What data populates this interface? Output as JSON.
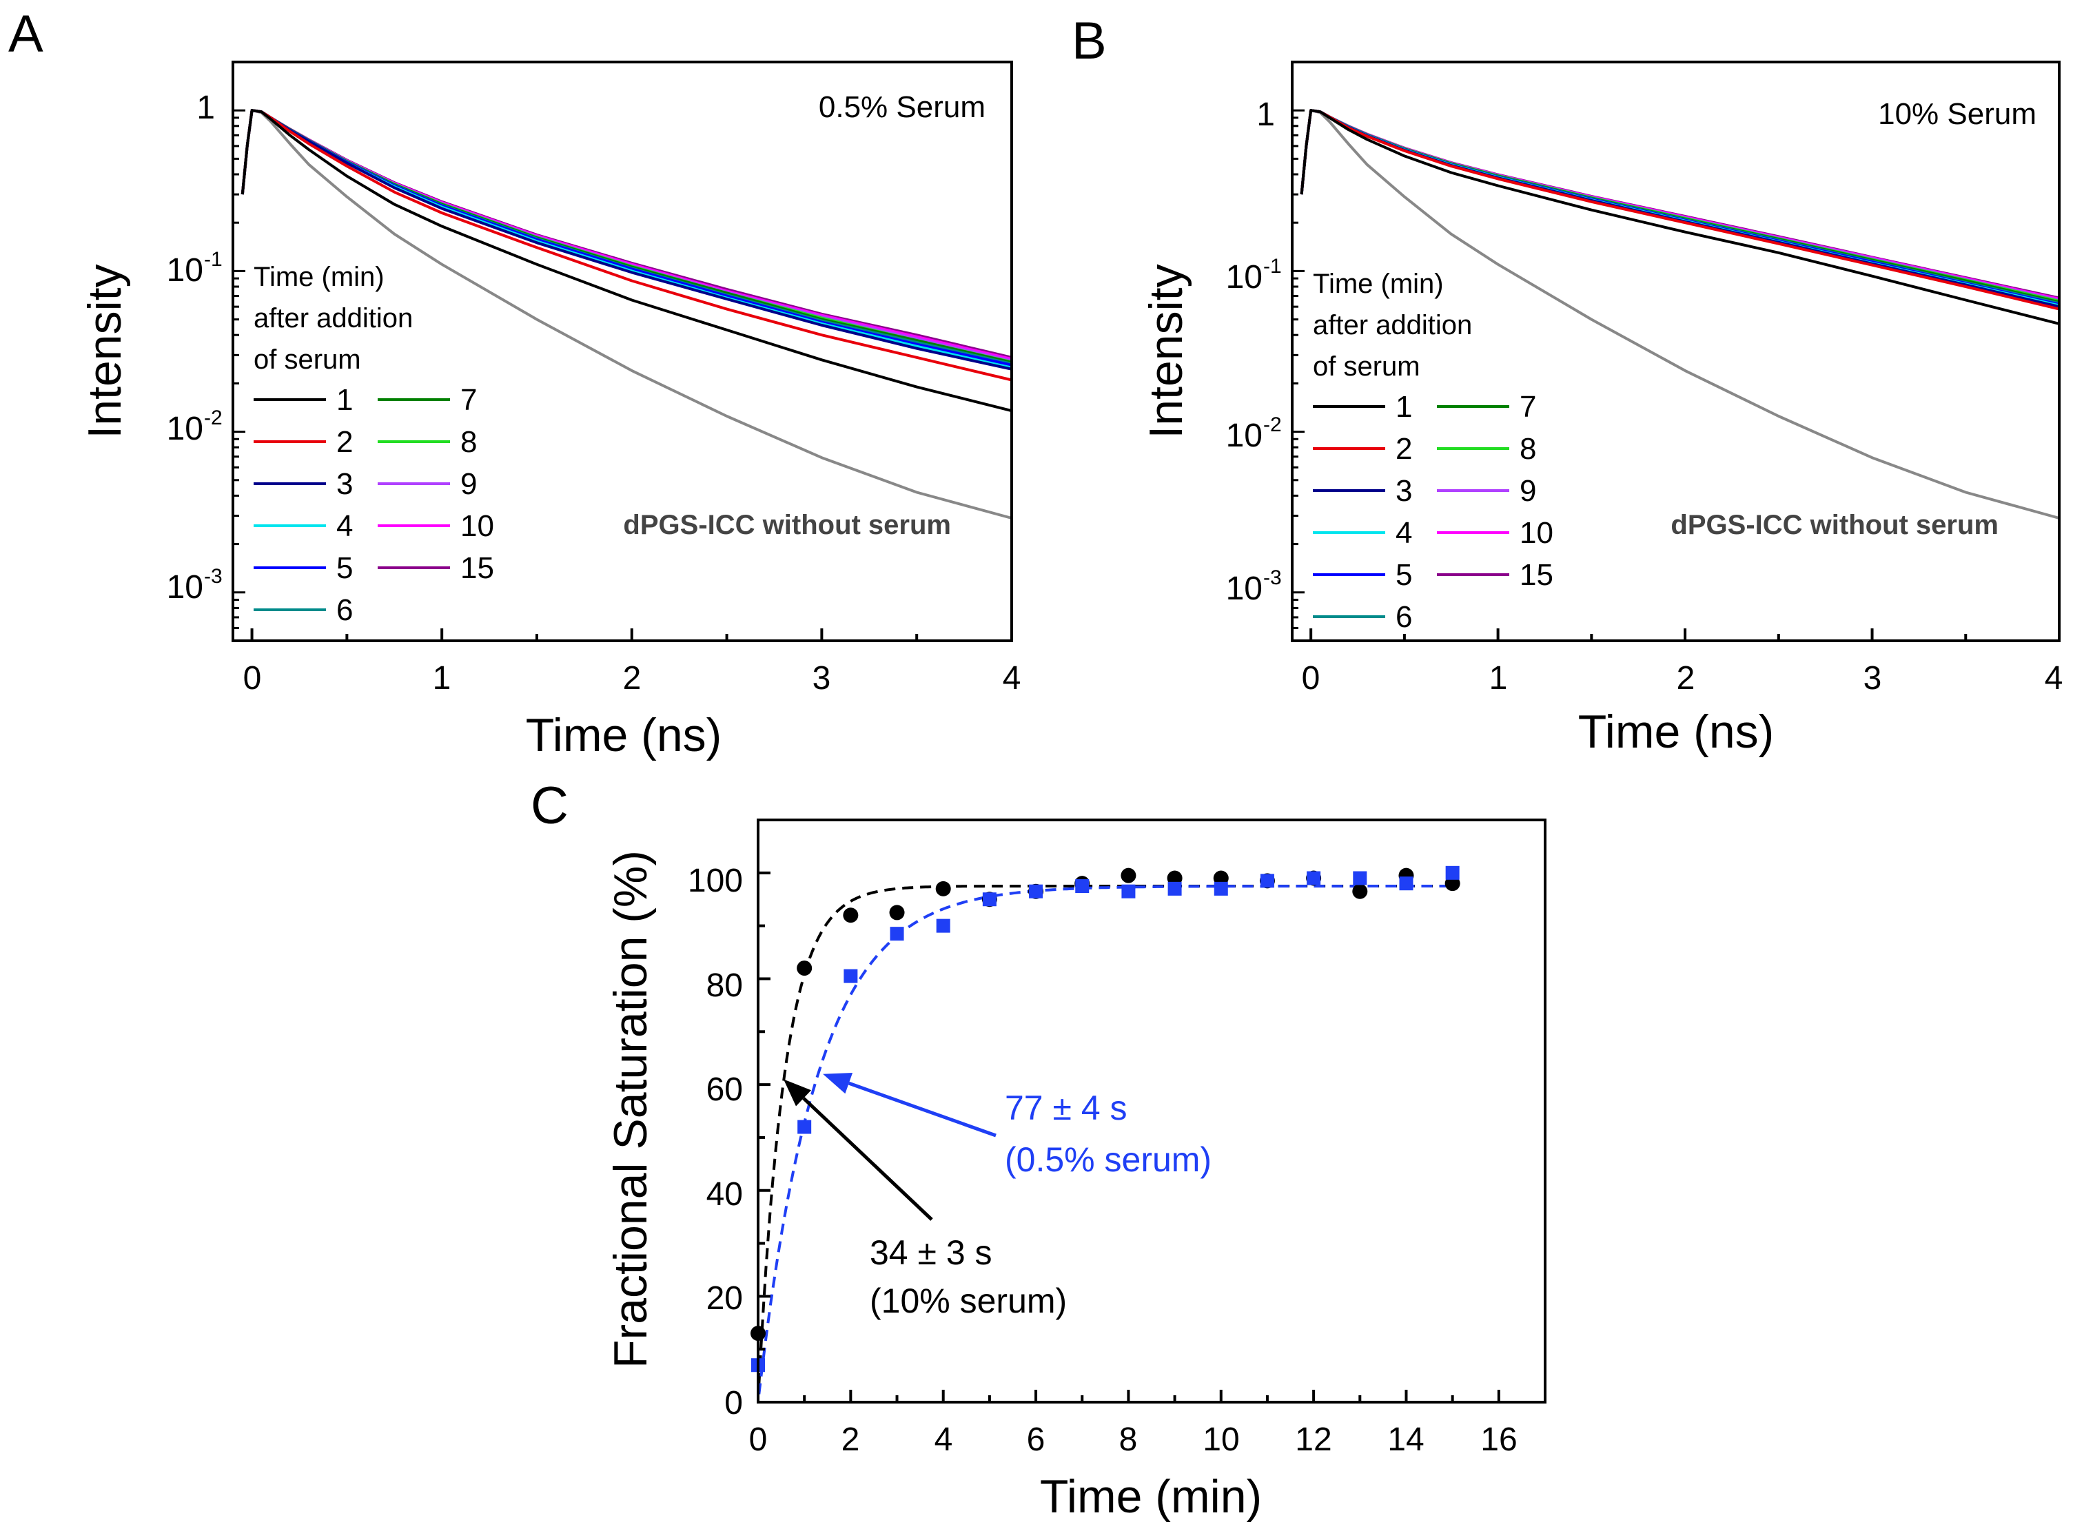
{
  "chart_data": [
    {
      "panel": "A",
      "type": "line",
      "title": "0.5% Serum",
      "xlabel": "Time (ns)",
      "ylabel": "Intensity",
      "yscale": "log",
      "xlim": [
        -0.1,
        4
      ],
      "ylim": [
        0.0005,
        2
      ],
      "xticks": [
        "0",
        "1",
        "2",
        "3",
        "4"
      ],
      "yticks": [
        {
          "base": "1",
          "exp": ""
        },
        {
          "base": "10",
          "exp": "-1"
        },
        {
          "base": "10",
          "exp": "-2"
        },
        {
          "base": "10",
          "exp": "-3"
        }
      ],
      "legend_title": [
        "Time (min)",
        "after addition",
        "of serum"
      ],
      "annotation": "dPGS-ICC without serum",
      "x": [
        -0.05,
        -0.025,
        0,
        0.05,
        0.1,
        0.2,
        0.3,
        0.5,
        0.75,
        1,
        1.5,
        2,
        2.5,
        3,
        3.5,
        4
      ],
      "series": [
        {
          "name": "1",
          "color": "#000000",
          "values": [
            0.3,
            0.6,
            1.0,
            0.98,
            0.88,
            0.7,
            0.57,
            0.39,
            0.26,
            0.19,
            0.11,
            0.066,
            0.043,
            0.028,
            0.019,
            0.0135
          ]
        },
        {
          "name": "2",
          "color": "#e8000b",
          "values": [
            0.3,
            0.6,
            1.0,
            0.98,
            0.9,
            0.74,
            0.62,
            0.45,
            0.31,
            0.23,
            0.14,
            0.087,
            0.058,
            0.04,
            0.029,
            0.021
          ]
        },
        {
          "name": "3",
          "color": "#00008b",
          "values": [
            0.3,
            0.6,
            1.0,
            0.98,
            0.9,
            0.75,
            0.64,
            0.47,
            0.33,
            0.245,
            0.15,
            0.098,
            0.067,
            0.046,
            0.033,
            0.0245
          ]
        },
        {
          "name": "4",
          "color": "#00e5ee",
          "values": [
            0.3,
            0.6,
            1.0,
            0.98,
            0.9,
            0.75,
            0.64,
            0.47,
            0.335,
            0.25,
            0.153,
            0.1,
            0.068,
            0.047,
            0.034,
            0.025
          ]
        },
        {
          "name": "5",
          "color": "#0000ff",
          "values": [
            0.3,
            0.6,
            1.0,
            0.98,
            0.9,
            0.755,
            0.645,
            0.475,
            0.34,
            0.255,
            0.157,
            0.103,
            0.07,
            0.048,
            0.035,
            0.026
          ]
        },
        {
          "name": "6",
          "color": "#008b8b",
          "values": [
            0.3,
            0.6,
            1.0,
            0.98,
            0.9,
            0.755,
            0.645,
            0.478,
            0.342,
            0.257,
            0.159,
            0.104,
            0.071,
            0.049,
            0.036,
            0.0265
          ]
        },
        {
          "name": "7",
          "color": "#008000",
          "values": [
            0.3,
            0.6,
            1.0,
            0.98,
            0.9,
            0.76,
            0.65,
            0.48,
            0.345,
            0.26,
            0.161,
            0.106,
            0.073,
            0.05,
            0.037,
            0.027
          ]
        },
        {
          "name": "8",
          "color": "#22dd22",
          "values": [
            0.3,
            0.6,
            1.0,
            0.98,
            0.9,
            0.76,
            0.65,
            0.482,
            0.347,
            0.262,
            0.162,
            0.107,
            0.073,
            0.051,
            0.037,
            0.0272
          ]
        },
        {
          "name": "9",
          "color": "#b040ff",
          "values": [
            0.3,
            0.6,
            1.0,
            0.98,
            0.9,
            0.76,
            0.652,
            0.484,
            0.349,
            0.264,
            0.164,
            0.108,
            0.074,
            0.052,
            0.038,
            0.0277
          ]
        },
        {
          "name": "10",
          "color": "#ff00ff",
          "values": [
            0.3,
            0.6,
            1.0,
            0.98,
            0.9,
            0.762,
            0.654,
            0.487,
            0.352,
            0.267,
            0.166,
            0.11,
            0.075,
            0.053,
            0.039,
            0.0283
          ]
        },
        {
          "name": "15",
          "color": "#8b008b",
          "values": [
            0.3,
            0.6,
            1.0,
            0.98,
            0.9,
            0.765,
            0.657,
            0.49,
            0.355,
            0.27,
            0.168,
            0.112,
            0.077,
            0.054,
            0.04,
            0.029
          ]
        },
        {
          "name": "dPGS-ICC without serum",
          "color": "#888888",
          "values": [
            0.3,
            0.6,
            1.0,
            0.97,
            0.85,
            0.62,
            0.46,
            0.29,
            0.17,
            0.11,
            0.05,
            0.024,
            0.0125,
            0.0069,
            0.0042,
            0.0029
          ]
        }
      ]
    },
    {
      "panel": "B",
      "type": "line",
      "title": "10% Serum",
      "xlabel": "Time (ns)",
      "ylabel": "Intensity",
      "yscale": "log",
      "xlim": [
        -0.1,
        4
      ],
      "ylim": [
        0.0005,
        2
      ],
      "xticks": [
        "0",
        "1",
        "2",
        "3",
        "4"
      ],
      "yticks": [
        {
          "base": "1",
          "exp": ""
        },
        {
          "base": "10",
          "exp": "-1"
        },
        {
          "base": "10",
          "exp": "-2"
        },
        {
          "base": "10",
          "exp": "-3"
        }
      ],
      "legend_title": [
        "Time (min)",
        "after addition",
        "of serum"
      ],
      "annotation": "dPGS-ICC without serum",
      "x": [
        -0.05,
        -0.025,
        0,
        0.05,
        0.1,
        0.2,
        0.3,
        0.5,
        0.75,
        1,
        1.5,
        2,
        2.5,
        3,
        3.5,
        4
      ],
      "series": [
        {
          "name": "1",
          "color": "#000000",
          "values": [
            0.3,
            0.6,
            1.0,
            0.98,
            0.9,
            0.76,
            0.66,
            0.52,
            0.41,
            0.34,
            0.24,
            0.175,
            0.13,
            0.093,
            0.066,
            0.047
          ]
        },
        {
          "name": "2",
          "color": "#e8000b",
          "values": [
            0.3,
            0.6,
            1.0,
            0.98,
            0.91,
            0.78,
            0.69,
            0.56,
            0.45,
            0.375,
            0.27,
            0.2,
            0.148,
            0.109,
            0.08,
            0.058
          ]
        },
        {
          "name": "3",
          "color": "#00008b",
          "values": [
            0.3,
            0.6,
            1.0,
            0.98,
            0.91,
            0.785,
            0.695,
            0.565,
            0.455,
            0.38,
            0.275,
            0.203,
            0.151,
            0.111,
            0.082,
            0.06
          ]
        },
        {
          "name": "4",
          "color": "#00e5ee",
          "values": [
            0.3,
            0.6,
            1.0,
            0.98,
            0.91,
            0.787,
            0.698,
            0.568,
            0.458,
            0.383,
            0.277,
            0.205,
            0.152,
            0.112,
            0.083,
            0.061
          ]
        },
        {
          "name": "5",
          "color": "#0000ff",
          "values": [
            0.3,
            0.6,
            1.0,
            0.98,
            0.91,
            0.79,
            0.7,
            0.57,
            0.46,
            0.385,
            0.28,
            0.207,
            0.154,
            0.114,
            0.084,
            0.062
          ]
        },
        {
          "name": "6",
          "color": "#008b8b",
          "values": [
            0.3,
            0.6,
            1.0,
            0.98,
            0.91,
            0.792,
            0.702,
            0.572,
            0.462,
            0.387,
            0.282,
            0.209,
            0.156,
            0.115,
            0.085,
            0.063
          ]
        },
        {
          "name": "7",
          "color": "#008000",
          "values": [
            0.3,
            0.6,
            1.0,
            0.98,
            0.91,
            0.794,
            0.705,
            0.575,
            0.465,
            0.39,
            0.284,
            0.211,
            0.158,
            0.117,
            0.087,
            0.064
          ]
        },
        {
          "name": "8",
          "color": "#22dd22",
          "values": [
            0.3,
            0.6,
            1.0,
            0.98,
            0.91,
            0.795,
            0.706,
            0.577,
            0.467,
            0.392,
            0.286,
            0.213,
            0.159,
            0.118,
            0.088,
            0.065
          ]
        },
        {
          "name": "9",
          "color": "#b040ff",
          "values": [
            0.3,
            0.6,
            1.0,
            0.98,
            0.91,
            0.797,
            0.708,
            0.579,
            0.469,
            0.394,
            0.288,
            0.215,
            0.161,
            0.12,
            0.089,
            0.066
          ]
        },
        {
          "name": "10",
          "color": "#ff00ff",
          "values": [
            0.3,
            0.6,
            1.0,
            0.98,
            0.91,
            0.798,
            0.71,
            0.581,
            0.471,
            0.396,
            0.29,
            0.217,
            0.162,
            0.121,
            0.09,
            0.067
          ]
        },
        {
          "name": "15",
          "color": "#8b008b",
          "values": [
            0.3,
            0.6,
            1.0,
            0.98,
            0.91,
            0.8,
            0.712,
            0.583,
            0.473,
            0.398,
            0.292,
            0.219,
            0.164,
            0.122,
            0.091,
            0.068
          ]
        },
        {
          "name": "dPGS-ICC without serum",
          "color": "#888888",
          "values": [
            0.3,
            0.6,
            1.0,
            0.97,
            0.85,
            0.62,
            0.46,
            0.29,
            0.17,
            0.11,
            0.05,
            0.024,
            0.0125,
            0.0069,
            0.0042,
            0.0029
          ]
        }
      ]
    },
    {
      "panel": "C",
      "type": "scatter",
      "xlabel": "Time (min)",
      "ylabel": "Fractional Saturation (%)",
      "xlim": [
        0,
        17
      ],
      "ylim": [
        0,
        110
      ],
      "xticks": [
        "0",
        "2",
        "4",
        "6",
        "8",
        "10",
        "12",
        "14",
        "16"
      ],
      "yticks": [
        "0",
        "20",
        "40",
        "60",
        "80",
        "100"
      ],
      "series": [
        {
          "name": "10% serum",
          "marker": "circle",
          "color": "#000000",
          "x": [
            0,
            1,
            2,
            3,
            4,
            5,
            6,
            7,
            8,
            9,
            10,
            11,
            12,
            13,
            14,
            15
          ],
          "y": [
            13,
            82,
            92,
            92.5,
            97,
            95,
            96.5,
            98,
            99.5,
            99,
            99,
            98.5,
            99,
            96.5,
            99.5,
            98
          ]
        },
        {
          "name": "0.5% serum",
          "marker": "square",
          "color": "#1f3ff5",
          "x": [
            0,
            1,
            2,
            3,
            4,
            5,
            6,
            7,
            8,
            9,
            10,
            11,
            12,
            13,
            14,
            15
          ],
          "y": [
            7,
            52,
            80.5,
            88.5,
            90,
            95,
            96.5,
            97.5,
            96.5,
            97,
            97,
            98.5,
            99,
            99,
            98,
            100
          ]
        }
      ],
      "fits": [
        {
          "name": "fit 10% serum",
          "color": "#000000",
          "plateau": 97.5,
          "tau_s": 34
        },
        {
          "name": "fit 0.5% serum",
          "color": "#1f3ff5",
          "plateau": 97.5,
          "tau_s": 77
        }
      ],
      "annotations": [
        {
          "lines": [
            "77 ± 4 s",
            "(0.5% serum)"
          ],
          "color": "#1f3ff5",
          "arrow_to": [
            1.4,
            62
          ]
        },
        {
          "lines": [
            "34 ± 3 s",
            "(10% serum)"
          ],
          "color": "#000000",
          "arrow_to": [
            0.55,
            61
          ]
        }
      ]
    }
  ]
}
